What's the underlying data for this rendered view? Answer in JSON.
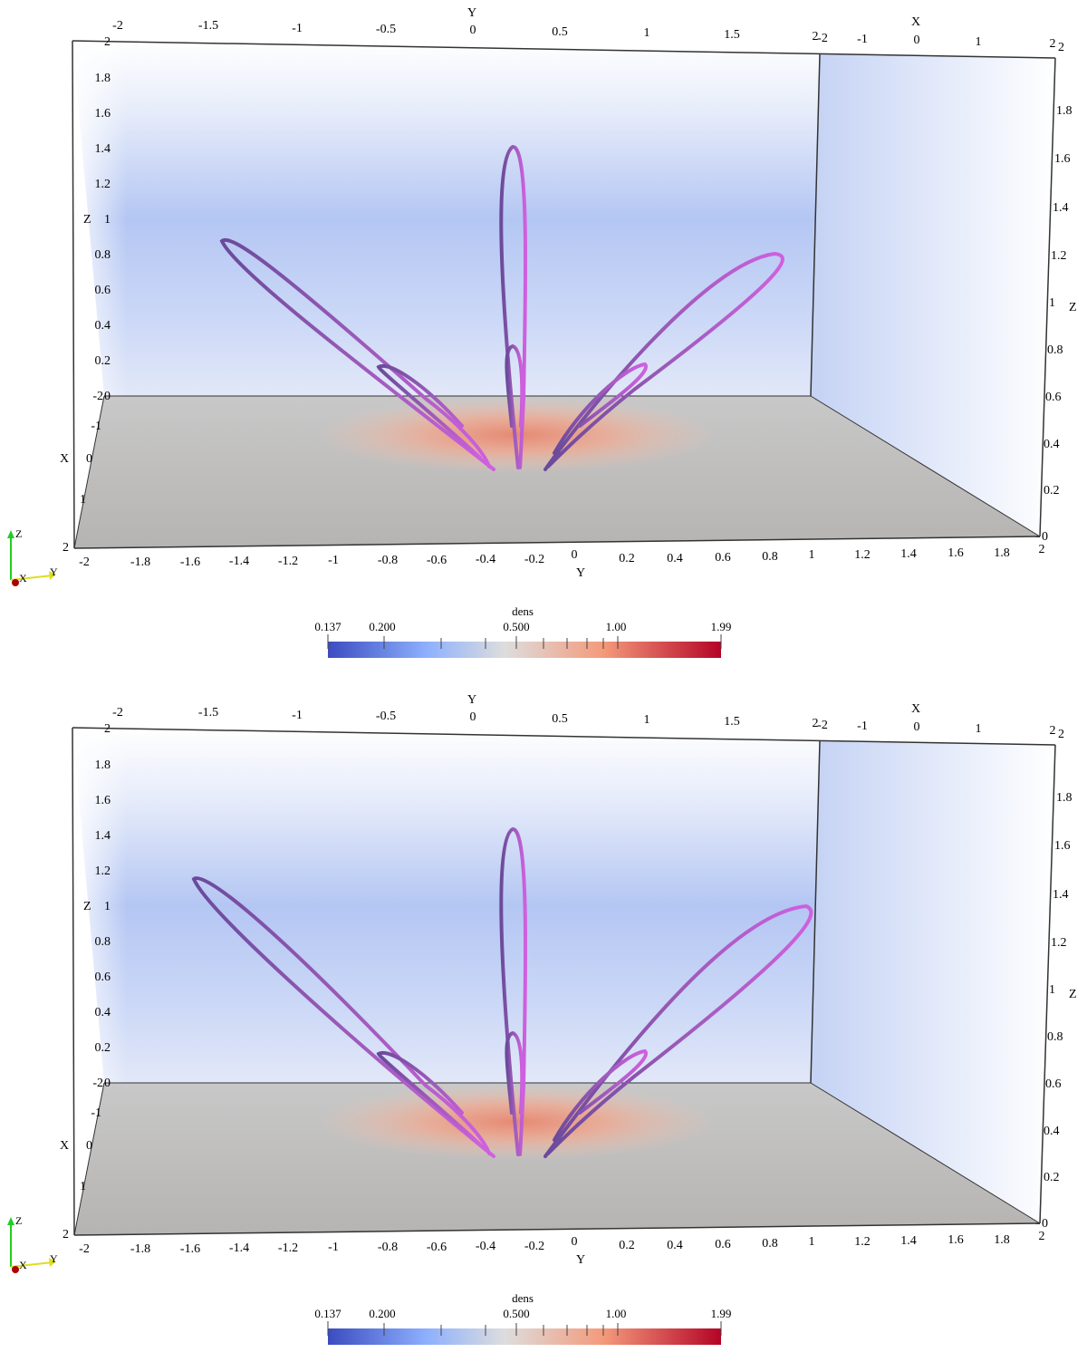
{
  "panels": [
    {
      "id": "top",
      "top_y_axis": {
        "name": "Y",
        "ticks": [
          "-2",
          "-1.5",
          "-1",
          "-0.5",
          "0",
          "0.5",
          "1",
          "1.5",
          "2"
        ]
      },
      "top_x_axis": {
        "name": "X",
        "ticks": [
          "-2",
          "-1",
          "0",
          "1",
          "2"
        ]
      },
      "left_z_axis": {
        "name": "Z",
        "ticks": [
          "2",
          "1.8",
          "1.6",
          "1.4",
          "1.2",
          "1",
          "0.8",
          "0.6",
          "0.4",
          "0.2",
          "0"
        ]
      },
      "left_x_axis": {
        "name": "X",
        "ticks": [
          "-2",
          "-1",
          "0",
          "1",
          "2"
        ]
      },
      "right_z_axis": {
        "name": "Z",
        "ticks": [
          "2",
          "1.8",
          "1.6",
          "1.4",
          "1.2",
          "1",
          "0.8",
          "0.6",
          "0.4",
          "0.2",
          "0"
        ]
      },
      "bottom_y_axis": {
        "name": "Y",
        "ticks": [
          "-2",
          "-1.8",
          "-1.6",
          "-1.4",
          "-1.2",
          "-1",
          "-0.8",
          "-0.6",
          "-0.4",
          "-0.2",
          "0",
          "0.2",
          "0.4",
          "0.6",
          "0.8",
          "1",
          "1.2",
          "1.4",
          "1.6",
          "1.8",
          "2"
        ]
      },
      "colorbar": {
        "title": "dens",
        "ticks": [
          "0.137",
          "0.200",
          "0.500",
          "1.00",
          "1.99"
        ]
      },
      "orientation": {
        "z": "Z",
        "x": "X",
        "y": "Y"
      }
    },
    {
      "id": "bottom",
      "top_y_axis": {
        "name": "Y",
        "ticks": [
          "-2",
          "-1.5",
          "-1",
          "-0.5",
          "0",
          "0.5",
          "1",
          "1.5",
          "2"
        ]
      },
      "top_x_axis": {
        "name": "X",
        "ticks": [
          "-2",
          "-1",
          "0",
          "1",
          "2"
        ]
      },
      "left_z_axis": {
        "name": "Z",
        "ticks": [
          "2",
          "1.8",
          "1.6",
          "1.4",
          "1.2",
          "1",
          "0.8",
          "0.6",
          "0.4",
          "0.2",
          "0"
        ]
      },
      "left_x_axis": {
        "name": "X",
        "ticks": [
          "-2",
          "-1",
          "0",
          "1",
          "2"
        ]
      },
      "right_z_axis": {
        "name": "Z",
        "ticks": [
          "2",
          "1.8",
          "1.6",
          "1.4",
          "1.2",
          "1",
          "0.8",
          "0.6",
          "0.4",
          "0.2",
          "0"
        ]
      },
      "bottom_y_axis": {
        "name": "Y",
        "ticks": [
          "-2",
          "-1.8",
          "-1.6",
          "-1.4",
          "-1.2",
          "-1",
          "-0.8",
          "-0.6",
          "-0.4",
          "-0.2",
          "0",
          "0.2",
          "0.4",
          "0.6",
          "0.8",
          "1",
          "1.2",
          "1.4",
          "1.6",
          "1.8",
          "2"
        ]
      },
      "colorbar": {
        "title": "dens",
        "ticks": [
          "0.137",
          "0.200",
          "0.500",
          "1.00",
          "1.99"
        ]
      },
      "orientation": {
        "z": "Z",
        "x": "X",
        "y": "Y"
      }
    }
  ],
  "colors": {
    "colormap_low": "#3b4cc0",
    "colormap_mid": "#dddddd",
    "colormap_high": "#b40426",
    "field_line": "#cc55dd",
    "field_line_dark": "#5a4a8a",
    "floor": "#bcbcbc",
    "orient_z": "#22cc22",
    "orient_y": "#dddd22",
    "orient_x": "#aa0000"
  }
}
